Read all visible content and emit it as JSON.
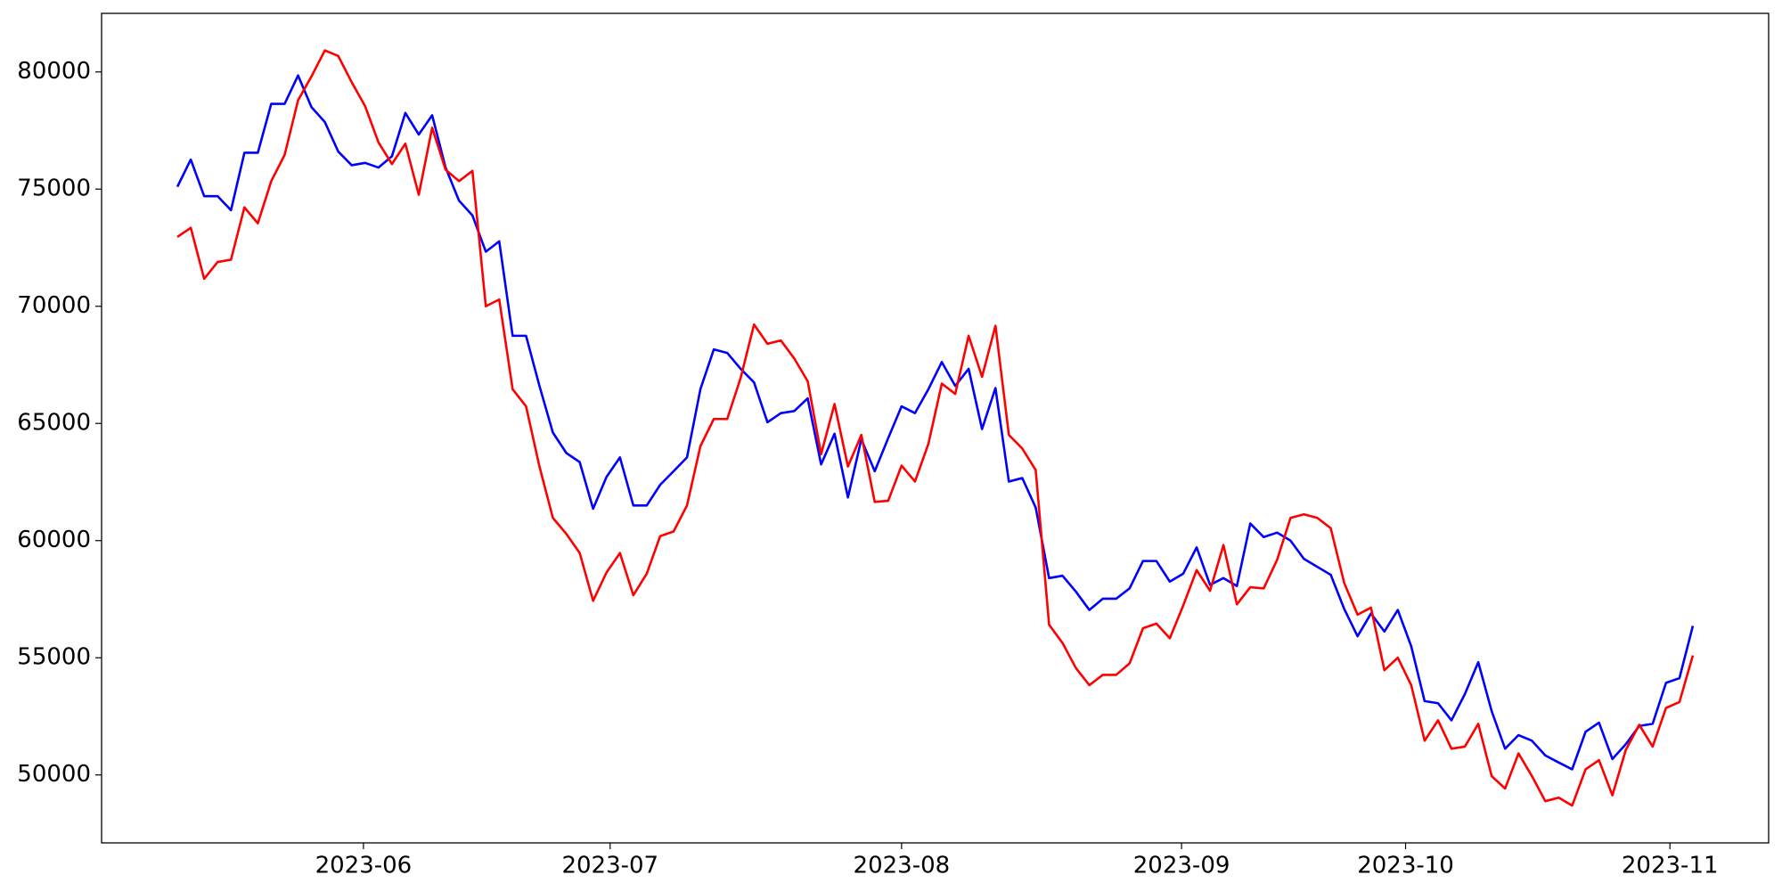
{
  "chart_data": {
    "type": "line",
    "categories": [
      null,
      null,
      null,
      null,
      null,
      null,
      null,
      null,
      null,
      null,
      null,
      null,
      null,
      null,
      null,
      null,
      null,
      null,
      null,
      null,
      null,
      null,
      null,
      null,
      null,
      null,
      null,
      null,
      null,
      null,
      null,
      null,
      null,
      null,
      null,
      null,
      null,
      null,
      null,
      null,
      null,
      null,
      null,
      null,
      null,
      null,
      null,
      null,
      null,
      null,
      null,
      null,
      null,
      null,
      null,
      null,
      null,
      null,
      null,
      null,
      null,
      null,
      null,
      null,
      null,
      null,
      null,
      null,
      null,
      null,
      null,
      null,
      null,
      null,
      null,
      null,
      null,
      null,
      null,
      null,
      null,
      null,
      null,
      null,
      null,
      null,
      null,
      null,
      null,
      null,
      null,
      null,
      null,
      null,
      null,
      null,
      null,
      null,
      null,
      null,
      null,
      null,
      null,
      null,
      null,
      null,
      null,
      null,
      null,
      null,
      null,
      null,
      null,
      null
    ],
    "series": [
      {
        "color": "#0000ff",
        "values": [
          75100,
          76260,
          74700,
          74700,
          74100,
          76550,
          76550,
          78640,
          78640,
          79850,
          78500,
          77860,
          76600,
          76020,
          76120,
          75920,
          76400,
          78250,
          77330,
          78150,
          75920,
          74510,
          73880,
          72330,
          72770,
          68740,
          68740,
          66600,
          64610,
          63740,
          63350,
          61360,
          62720,
          63550,
          61500,
          61500,
          62380,
          62960,
          63550,
          66460,
          68160,
          68010,
          67330,
          66750,
          65050,
          65440,
          65530,
          66070,
          63250,
          64560,
          61840,
          64320,
          62960,
          64370,
          65730,
          65440,
          66460,
          67620,
          66600,
          67330,
          64760,
          66510,
          62520,
          62670,
          61410,
          58400,
          58500,
          57820,
          57040,
          57520,
          57520,
          57960,
          59130,
          59130,
          58250,
          58590,
          59710,
          58110,
          58400,
          58060,
          60730,
          60150,
          60340,
          60000,
          59220,
          58880,
          58540,
          57090,
          55920,
          56890,
          56120,
          57040,
          55490,
          53150,
          53060,
          52330,
          53450,
          54810,
          52720,
          51120,
          51700,
          51460,
          50830,
          50530,
          50240,
          51840,
          52230,
          50680,
          51310,
          52090,
          52180,
          53930,
          54130,
          56360
        ]
      },
      {
        "color": "#ff0000",
        "values": [
          72960,
          73350,
          71170,
          71890,
          71990,
          74220,
          73540,
          75340,
          76460,
          78790,
          79810,
          80920,
          80680,
          79560,
          78540,
          76990,
          76070,
          76940,
          74760,
          77620,
          75830,
          75340,
          75780,
          70000,
          70290,
          66460,
          65730,
          63160,
          60970,
          60290,
          59470,
          57430,
          58640,
          59470,
          57670,
          58590,
          60190,
          60390,
          61500,
          64030,
          65190,
          65190,
          66940,
          69220,
          68400,
          68540,
          67770,
          66800,
          63690,
          65830,
          63160,
          64510,
          61650,
          61700,
          63200,
          62520,
          64130,
          66700,
          66260,
          68740,
          66990,
          69170,
          64510,
          63930,
          63010,
          56410,
          55630,
          54560,
          53830,
          54270,
          54270,
          54760,
          56260,
          56460,
          55830,
          57230,
          58740,
          57860,
          59810,
          57280,
          58010,
          57960,
          59180,
          60970,
          61120,
          60970,
          60530,
          58200,
          56840,
          57140,
          54470,
          55000,
          53830,
          51460,
          52330,
          51120,
          51210,
          52180,
          49950,
          49420,
          50920,
          49950,
          48880,
          49030,
          48690,
          50240,
          50630,
          49130,
          51070,
          52140,
          51210,
          52860,
          53110,
          55100
        ]
      }
    ],
    "xlim": [
      -5.65,
      118.65
    ],
    "xticks": [
      {
        "value": 13.875,
        "label": "2023-06"
      },
      {
        "value": 32.27,
        "label": "2023-07"
      },
      {
        "value": 54,
        "label": "2023-08"
      },
      {
        "value": 74.875,
        "label": "2023-09"
      },
      {
        "value": 91.58,
        "label": "2023-10"
      },
      {
        "value": 111.29,
        "label": "2023-11"
      }
    ],
    "ylim": [
      47100,
      82500
    ],
    "yticks": [
      50000,
      55000,
      60000,
      65000,
      70000,
      75000,
      80000
    ],
    "grid": false
  }
}
